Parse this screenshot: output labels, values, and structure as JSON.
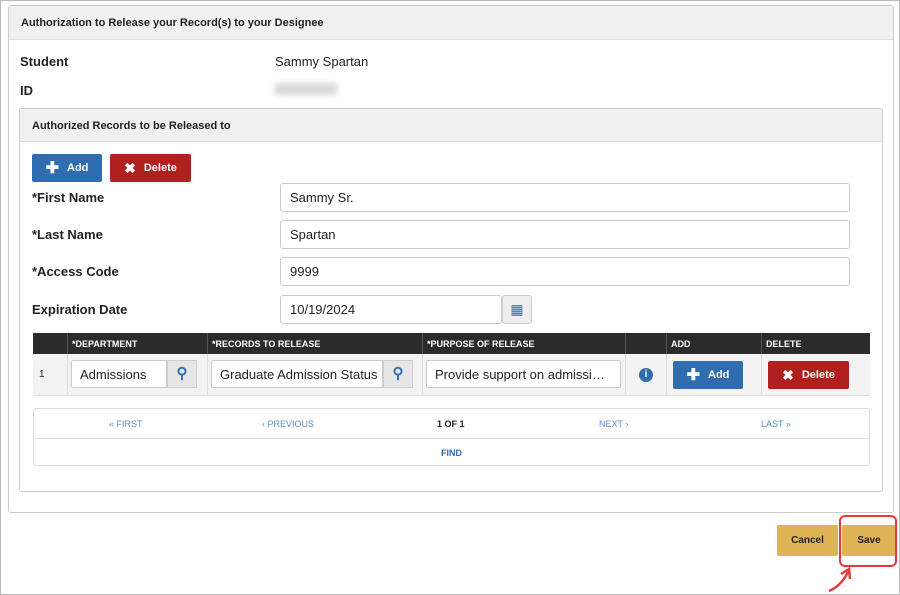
{
  "panel_title": "Authorization to Release your Record(s) to your Designee",
  "student": {
    "label": "Student",
    "value": "Sammy Spartan"
  },
  "id": {
    "label": "ID"
  },
  "section_title": "Authorized Records to be Released to",
  "buttons": {
    "add": "Add",
    "delete": "Delete",
    "cancel": "Cancel",
    "save": "Save"
  },
  "form": {
    "first_name": {
      "label": "*First Name",
      "value": "Sammy Sr."
    },
    "last_name": {
      "label": "*Last Name",
      "value": "Spartan"
    },
    "access_code": {
      "label": "*Access Code",
      "value": "9999"
    },
    "expiration_date": {
      "label": "Expiration Date",
      "value": "10/19/2024"
    }
  },
  "table": {
    "headers": [
      "",
      "*DEPARTMENT",
      "*RECORDS TO RELEASE",
      "*PURPOSE OF RELEASE",
      "",
      "ADD",
      "DELETE"
    ],
    "rows": [
      {
        "num": "1",
        "department": "Admissions",
        "records": "Graduate Admission Status",
        "purpose": "Provide support on admission's application",
        "add": "Add",
        "delete": "Delete"
      }
    ]
  },
  "pager": {
    "first": "« FIRST",
    "previous": "‹ PREVIOUS",
    "page": "1 OF 1",
    "next": "NEXT ›",
    "last": "LAST »",
    "find": "FIND"
  },
  "colors": {
    "primary": "#2f6db0",
    "danger": "#b0201f",
    "action": "#deb457",
    "highlight": "#e8383d"
  }
}
